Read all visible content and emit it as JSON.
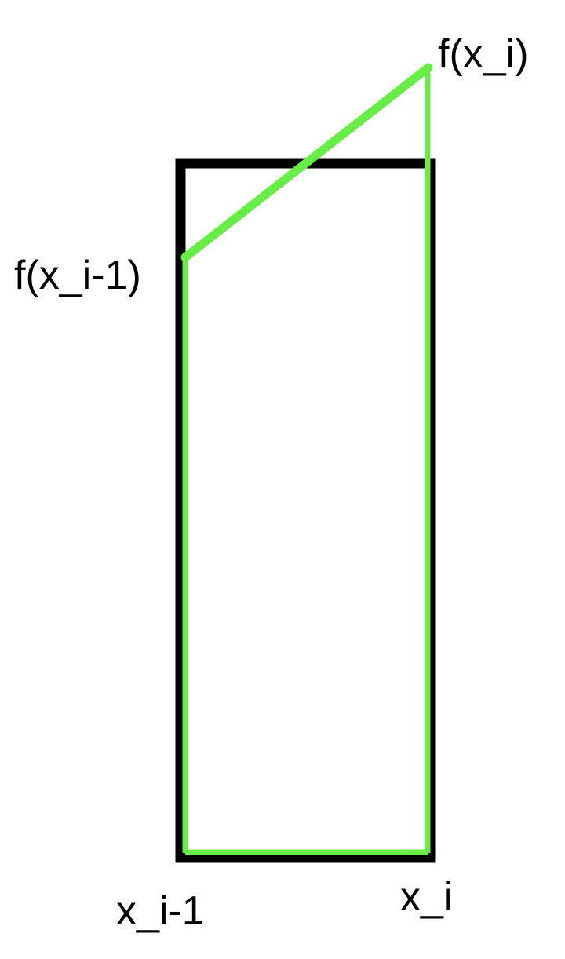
{
  "labels": {
    "f_xi": "f(x_i)",
    "f_xi_minus_1": "f(x_i-1)",
    "x_i_minus_1": "x_i-1",
    "x_i": "x_i"
  },
  "colors": {
    "rectangle": "#000000",
    "trapezoid": "#66ee44",
    "background": "#ffffff"
  }
}
